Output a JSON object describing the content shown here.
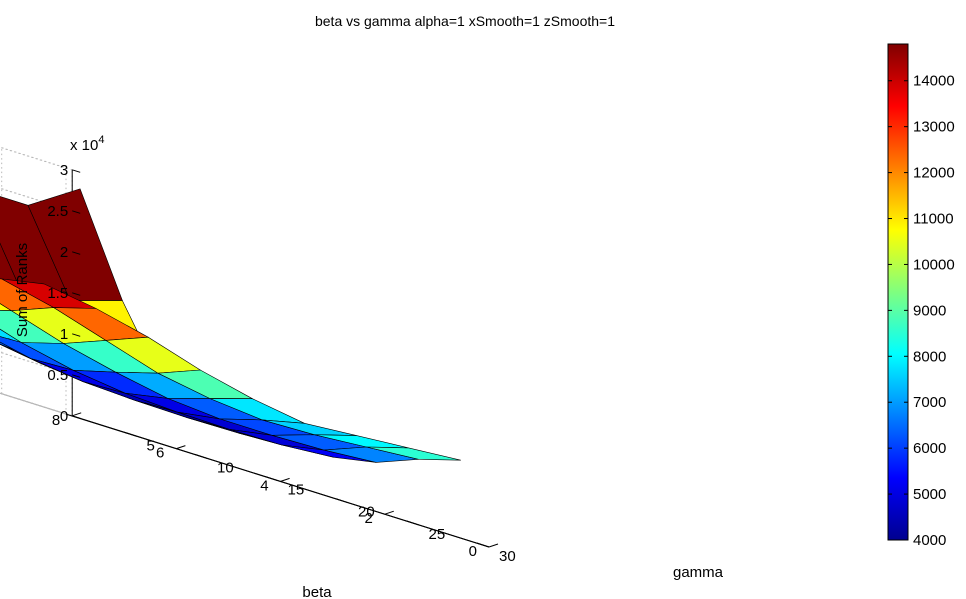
{
  "chart_data": {
    "type": "surface3d",
    "title": "beta vs gamma      alpha=1 xSmooth=1 zSmooth=1",
    "xlabel": "gamma",
    "ylabel": "beta",
    "zlabel": "Sum of Ranks",
    "z_exponent_label": "x 10",
    "z_exponent_power": "4",
    "xlim": [
      0,
      30
    ],
    "ylim": [
      0,
      8
    ],
    "zlim": [
      0,
      30000
    ],
    "x_ticks": [
      "5",
      "10",
      "15",
      "20",
      "25",
      "30"
    ],
    "y_ticks": [
      "0",
      "2",
      "4",
      "6",
      "8"
    ],
    "z_ticks": [
      "0",
      "0.5",
      "1",
      "1.5",
      "2",
      "2.5",
      "3"
    ],
    "colormap": "jet",
    "color_limits": [
      4000,
      14800
    ],
    "colorbar_ticks": [
      "4000",
      "5000",
      "6000",
      "7000",
      "8000",
      "9000",
      "10000",
      "11000",
      "12000",
      "13000",
      "14000"
    ],
    "gamma": [
      1,
      4,
      7,
      10,
      13,
      16,
      19,
      22,
      25,
      28
    ],
    "beta": [
      0,
      1,
      2,
      3,
      4,
      5,
      6,
      7,
      8
    ],
    "z": [
      [
        28000,
        16000,
        7000,
        6000,
        5200,
        4800,
        5000,
        6000,
        8000,
        9500
      ],
      [
        24000,
        14000,
        6500,
        5200,
        4600,
        4300,
        4500,
        5500,
        7500,
        9000
      ],
      [
        24000,
        14000,
        6500,
        5200,
        4400,
        4200,
        4400,
        5300,
        7000,
        8500
      ],
      [
        24000,
        13500,
        7000,
        5500,
        4600,
        4300,
        4500,
        5300,
        6800,
        8000
      ],
      [
        23500,
        13000,
        7500,
        6000,
        5200,
        4600,
        4800,
        5800,
        7400,
        9000
      ],
      [
        24000,
        13500,
        8500,
        7000,
        6200,
        5400,
        5600,
        7000,
        8500,
        10500
      ],
      [
        24500,
        14000,
        9500,
        8000,
        7000,
        6800,
        7000,
        8500,
        10500,
        12500
      ],
      [
        25000,
        15000,
        11000,
        9500,
        8500,
        8000,
        9000,
        10500,
        12500,
        14000
      ],
      [
        26000,
        17000,
        13000,
        11500,
        10500,
        10000,
        11000,
        12500,
        14000,
        15000
      ]
    ]
  }
}
